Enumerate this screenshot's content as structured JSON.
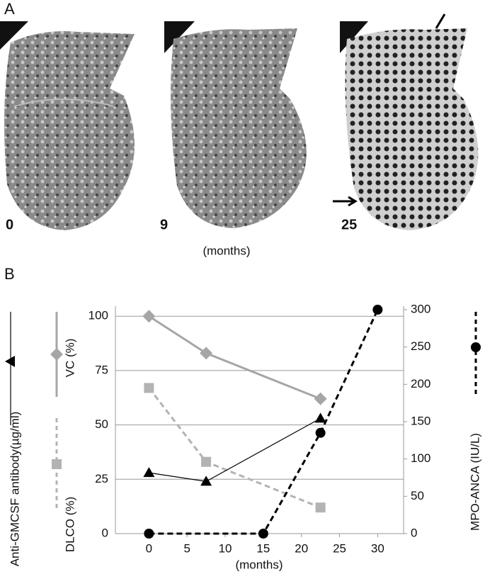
{
  "panel_a": {
    "label": "A",
    "image_labels": [
      "0",
      "9",
      "25"
    ],
    "axis_label": "(months)"
  },
  "chart_data": {
    "type": "line",
    "panel_label": "B",
    "xlabel": "(months)",
    "xlim": [
      -4.4,
      33.4
    ],
    "xticks": [
      0,
      5,
      10,
      15,
      20,
      25,
      30
    ],
    "ylim": [
      0,
      103
    ],
    "yticks": [
      0,
      25,
      50,
      75,
      100
    ],
    "y2lim": [
      0,
      300
    ],
    "y2ticks": [
      0,
      50,
      100,
      150,
      200,
      250,
      300
    ],
    "grid": true,
    "series": [
      {
        "name": "VC (%)",
        "color": "#a6a6a6",
        "marker": "diamond",
        "dash": false,
        "x": [
          0,
          7.5,
          22.5
        ],
        "values": [
          100,
          83,
          62
        ]
      },
      {
        "name": "DLCO (%)",
        "color": "#b3b3b3",
        "marker": "square",
        "dash": true,
        "x": [
          0,
          7.5,
          22.5
        ],
        "values": [
          67,
          33,
          12
        ]
      },
      {
        "name": "Anti-GMCSF antibody(µg/ml)",
        "color": "#000000",
        "marker": "triangle",
        "dash": false,
        "x": [
          0,
          7.5,
          22.5
        ],
        "values": [
          28,
          24,
          53
        ]
      },
      {
        "name": "MPO-ANCA (IU/L)",
        "color": "#000000",
        "marker": "circle",
        "dash": true,
        "axis": "y2",
        "x": [
          0,
          15,
          22.5,
          30
        ],
        "values": [
          0,
          0,
          135,
          300
        ]
      }
    ]
  }
}
